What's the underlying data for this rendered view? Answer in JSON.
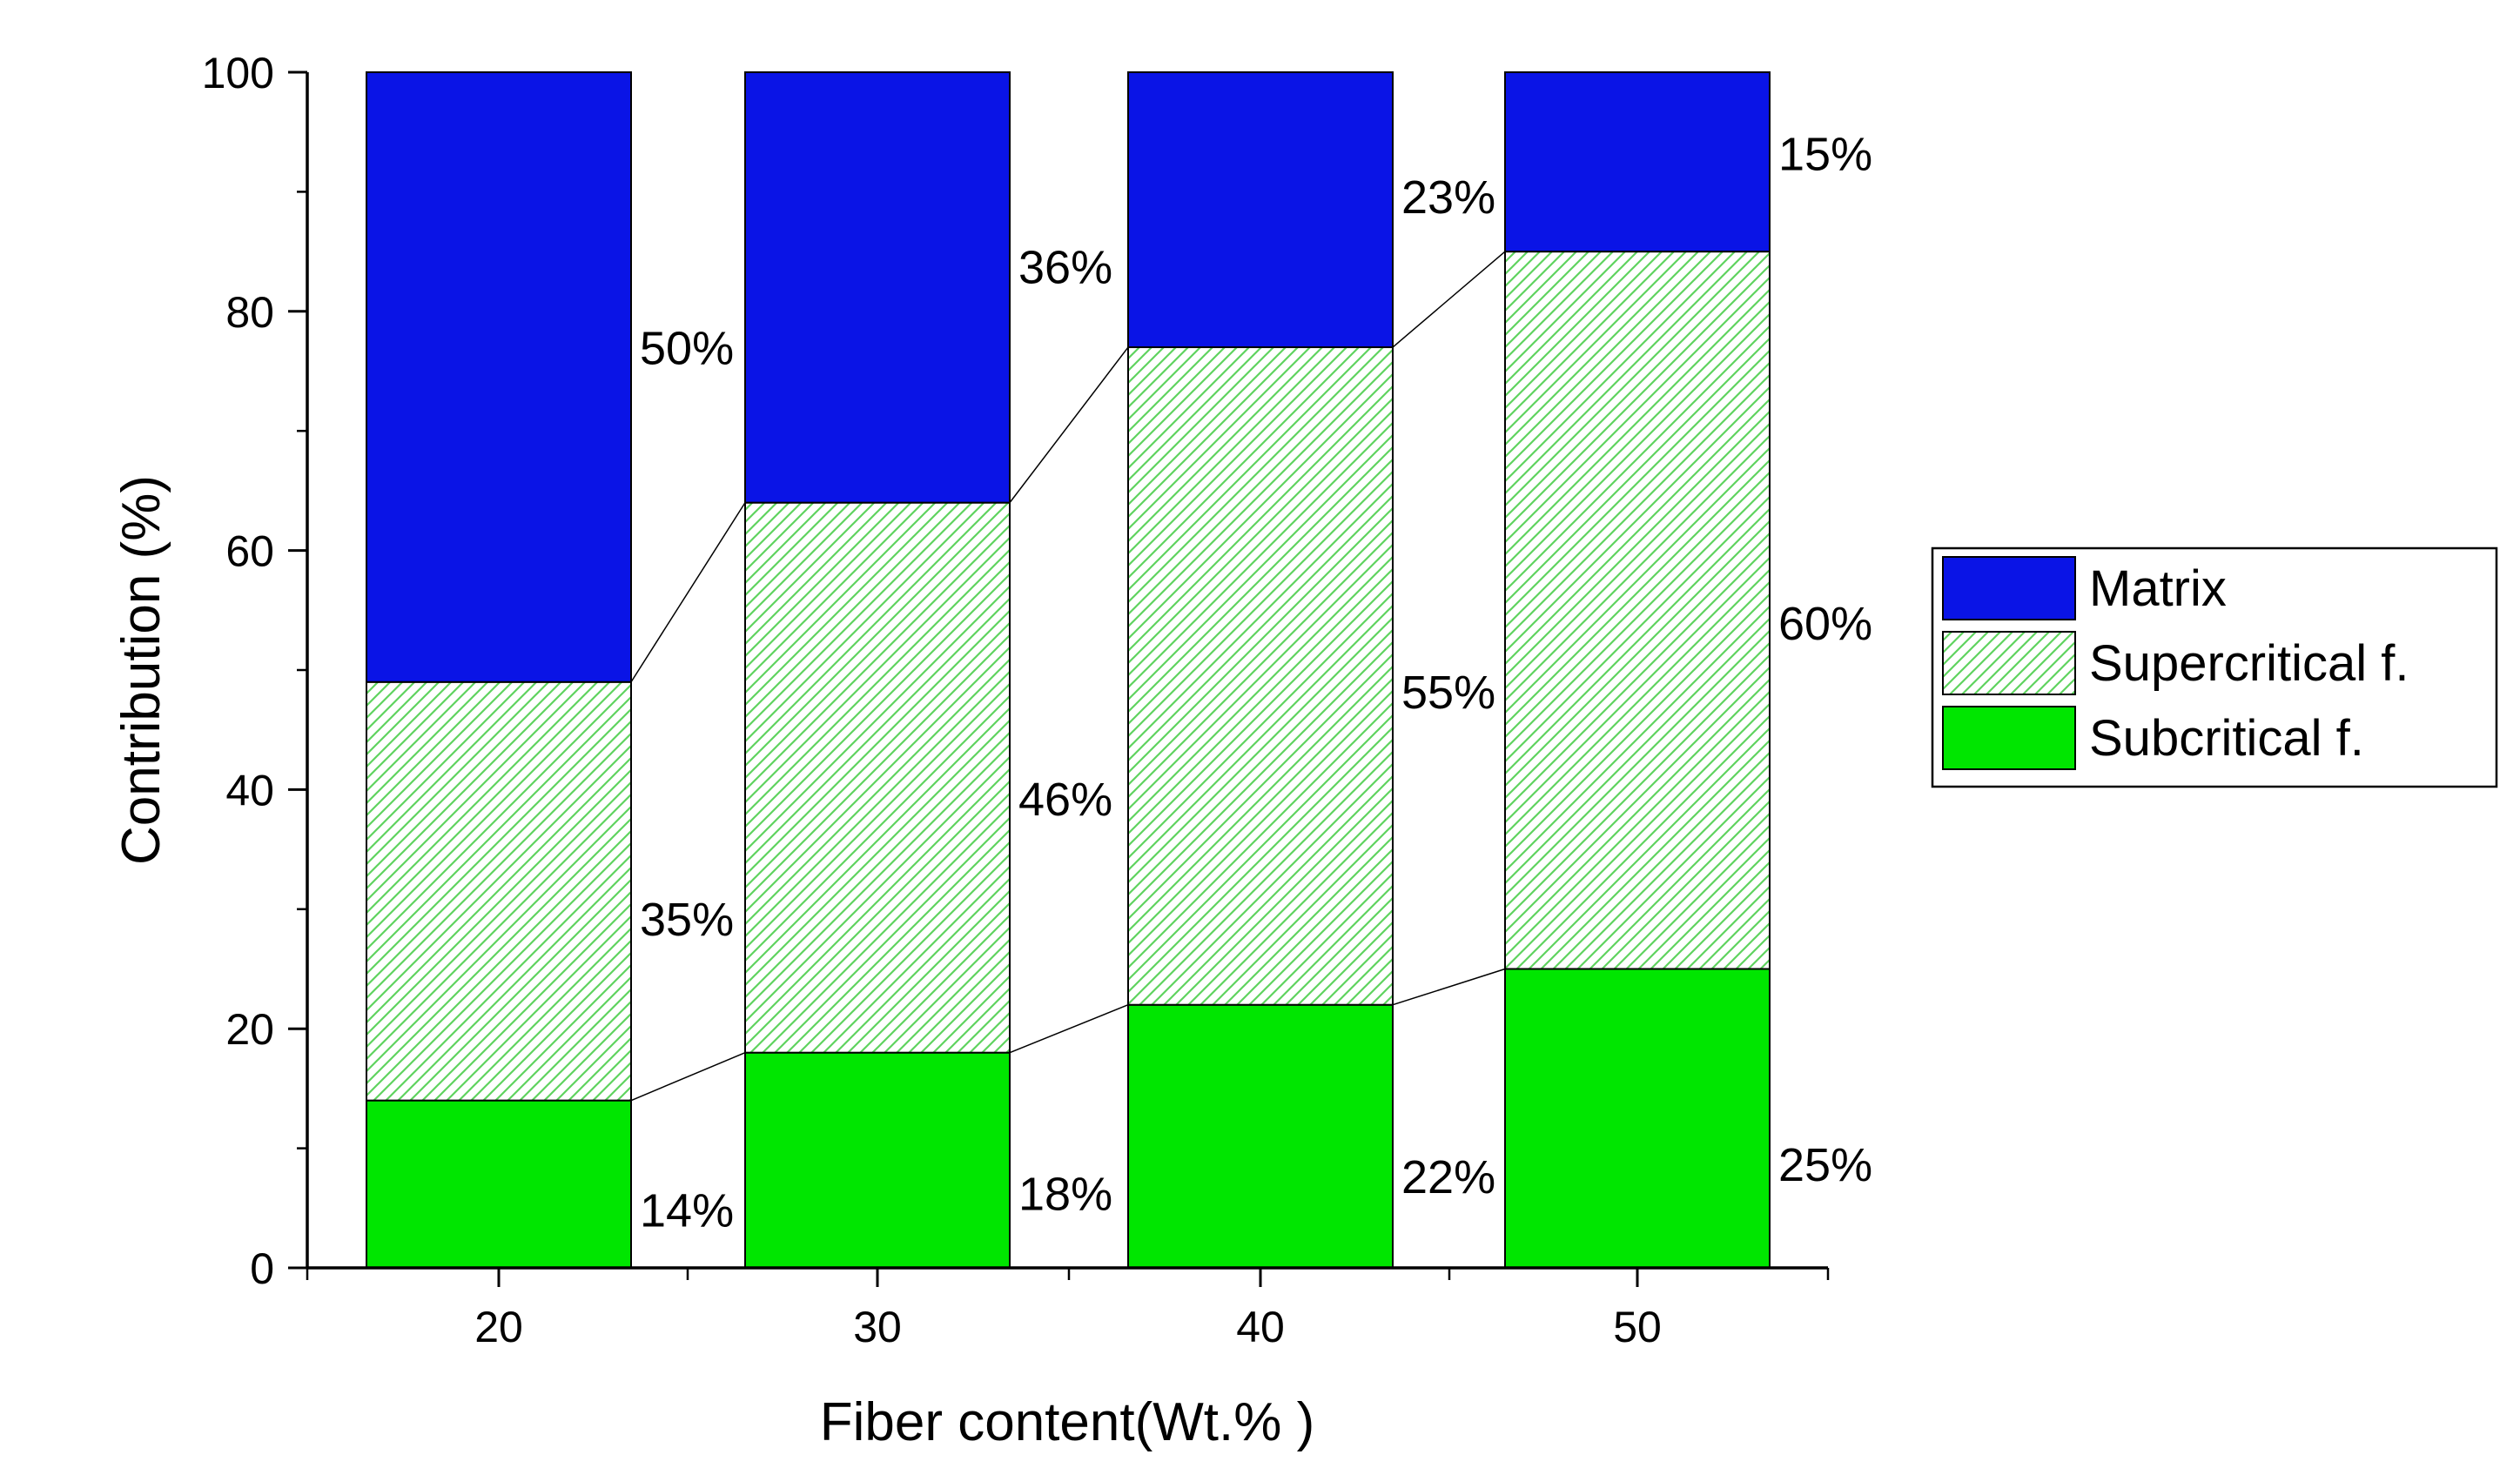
{
  "chart_data": {
    "type": "bar",
    "stacked": true,
    "title": "",
    "xlabel": "Fiber content(Wt.% )",
    "ylabel": "Contribution (%)",
    "ylim": [
      0,
      100
    ],
    "yticks": [
      "0",
      "20",
      "40",
      "60",
      "80",
      "100"
    ],
    "categories": [
      "20",
      "30",
      "40",
      "50"
    ],
    "series": [
      {
        "name": "Subcritical f.",
        "values": [
          14,
          18,
          22,
          25
        ],
        "labels": [
          "14%",
          "18%",
          "22%",
          "25%"
        ],
        "color": "#00e600",
        "pattern": "solid"
      },
      {
        "name": "Supercritical f.",
        "values": [
          35,
          46,
          55,
          60
        ],
        "labels": [
          "35%",
          "46%",
          "55%",
          "60%"
        ],
        "color": "#5fd35f",
        "pattern": "hatched"
      },
      {
        "name": "Matrix",
        "values": [
          50,
          36,
          23,
          15
        ],
        "labels": [
          "50%",
          "36%",
          "23%",
          "15%"
        ],
        "color": "#0a14e6",
        "pattern": "solid"
      }
    ],
    "legend": {
      "position": "right",
      "order": [
        "Matrix",
        "Supercritical f.",
        "Subcritical f."
      ]
    },
    "grid": false,
    "connector_lines": true
  }
}
